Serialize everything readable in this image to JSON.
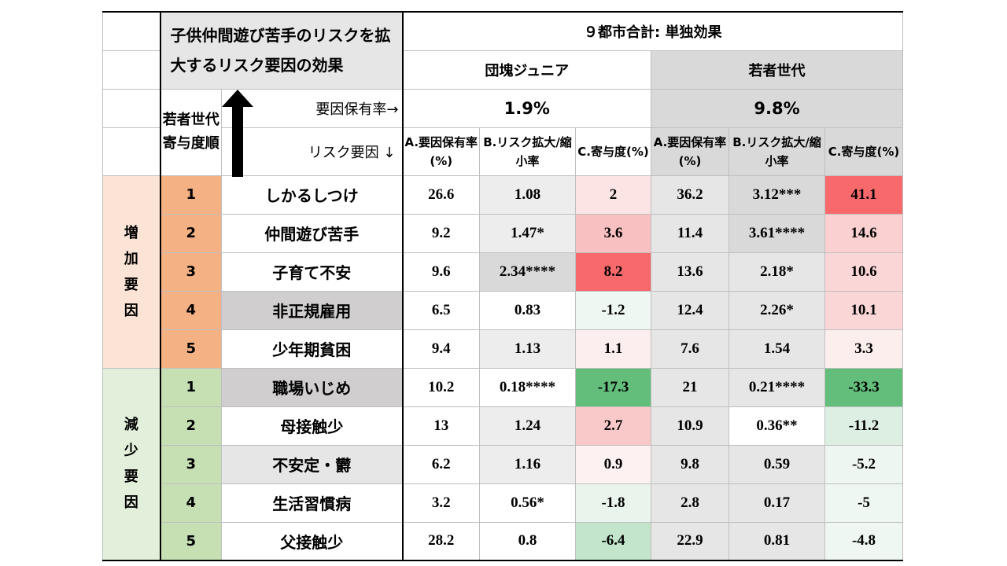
{
  "title": "子供仲間遊び苦手のリスクを拡大するリスク要因の効果",
  "top_header": "９都市合計: 単独効果",
  "groups": [
    {
      "name": "団塊ジュニア",
      "prevalence": "1.9%"
    },
    {
      "name": "若者世代",
      "prevalence": "9.8%"
    }
  ],
  "rank_label": "若者世代寄与度順",
  "prevalence_label": "要因保有率→",
  "factor_label": "リスク要因 ↓",
  "col_a": "A.要因保有率(%)",
  "col_b": "B.リスク拡大/縮小率",
  "col_c": "C.寄与度(%)",
  "increase_label": "増加要因",
  "decrease_label": "減少要因",
  "colors": {
    "increase_band": "#fbe4d5",
    "increase_rank": "#f4b183",
    "decrease_band": "#e2efda",
    "decrease_rank": "#c6e0b4",
    "strong_red": "#f8696b",
    "strong_green": "#63be7b"
  },
  "rows": [
    {
      "group": "increase",
      "rank": "1",
      "name": "しかるしつけ",
      "a1": "26.6",
      "b1": "1.08",
      "c1": "2",
      "a2": "36.2",
      "b2": "3.12***",
      "c2": "41.1"
    },
    {
      "group": "increase",
      "rank": "2",
      "name": "仲間遊び苦手",
      "a1": "9.2",
      "b1": "1.47*",
      "c1": "3.6",
      "a2": "11.4",
      "b2": "3.61****",
      "c2": "14.6"
    },
    {
      "group": "increase",
      "rank": "3",
      "name": "子育て不安",
      "a1": "9.6",
      "b1": "2.34****",
      "c1": "8.2",
      "a2": "13.6",
      "b2": "2.18*",
      "c2": "10.6"
    },
    {
      "group": "increase",
      "rank": "4",
      "name": "非正規雇用",
      "a1": "6.5",
      "b1": "0.83",
      "c1": "-1.2",
      "a2": "12.4",
      "b2": "2.26*",
      "c2": "10.1"
    },
    {
      "group": "increase",
      "rank": "5",
      "name": "少年期貧困",
      "a1": "9.4",
      "b1": "1.13",
      "c1": "1.1",
      "a2": "7.6",
      "b2": "1.54",
      "c2": "3.3"
    },
    {
      "group": "decrease",
      "rank": "1",
      "name": "職場いじめ",
      "a1": "10.2",
      "b1": "0.18****",
      "c1": "-17.3",
      "a2": "21",
      "b2": "0.21****",
      "c2": "-33.3"
    },
    {
      "group": "decrease",
      "rank": "2",
      "name": "母接触少",
      "a1": "13",
      "b1": "1.24",
      "c1": "2.7",
      "a2": "10.9",
      "b2": "0.36**",
      "c2": "-11.2"
    },
    {
      "group": "decrease",
      "rank": "3",
      "name": "不安定・欝",
      "a1": "6.2",
      "b1": "1.16",
      "c1": "0.9",
      "a2": "9.8",
      "b2": "0.59",
      "c2": "-5.2"
    },
    {
      "group": "decrease",
      "rank": "4",
      "name": "生活習慣病",
      "a1": "3.2",
      "b1": "0.56*",
      "c1": "-1.8",
      "a2": "2.8",
      "b2": "0.17",
      "c2": "-5"
    },
    {
      "group": "decrease",
      "rank": "5",
      "name": "父接触少",
      "a1": "28.2",
      "b1": "0.8",
      "c1": "-6.4",
      "a2": "22.9",
      "b2": "0.81",
      "c2": "-4.8"
    }
  ],
  "cell_styles": {
    "name_bg": [
      "#ffffff",
      "#ffffff",
      "#ffffff",
      "#d0cece",
      "#ffffff",
      "#d0cece",
      "#ffffff",
      "#e7e6e6",
      "#ffffff",
      "#ffffff"
    ],
    "b1_bg": [
      "#ededed",
      "#ededed",
      "#d9d9d9",
      "#ffffff",
      "#ededed",
      "#ffffff",
      "#ededed",
      "#ededed",
      "#ffffff",
      "#ffffff"
    ],
    "c1_bg": [
      "#fce4e4",
      "#f9c0c1",
      "#f8696b",
      "#eef7f1",
      "#fcedee",
      "#63be7b",
      "#f9c9ca",
      "#fdf1f1",
      "#e8f4ec",
      "#c2e5cc"
    ],
    "a2_bg": [
      "#e7e6e6",
      "#e7e6e6",
      "#e7e6e6",
      "#e7e6e6",
      "#e7e6e6",
      "#e7e6e6",
      "#e7e6e6",
      "#e7e6e6",
      "#e7e6e6",
      "#e7e6e6"
    ],
    "b2_bg": [
      "#d9d9d9",
      "#d9d9d9",
      "#e7e6e6",
      "#e7e6e6",
      "#e7e6e6",
      "#e7e6e6",
      "#ffffff",
      "#e7e6e6",
      "#e7e6e6",
      "#e7e6e6"
    ],
    "c2_bg": [
      "#f8696b",
      "#fad0d1",
      "#fad6d7",
      "#fad6d7",
      "#fdeeee",
      "#63be7b",
      "#dcefe2",
      "#edf6f0",
      "#eef7f1",
      "#eef7f1"
    ]
  }
}
